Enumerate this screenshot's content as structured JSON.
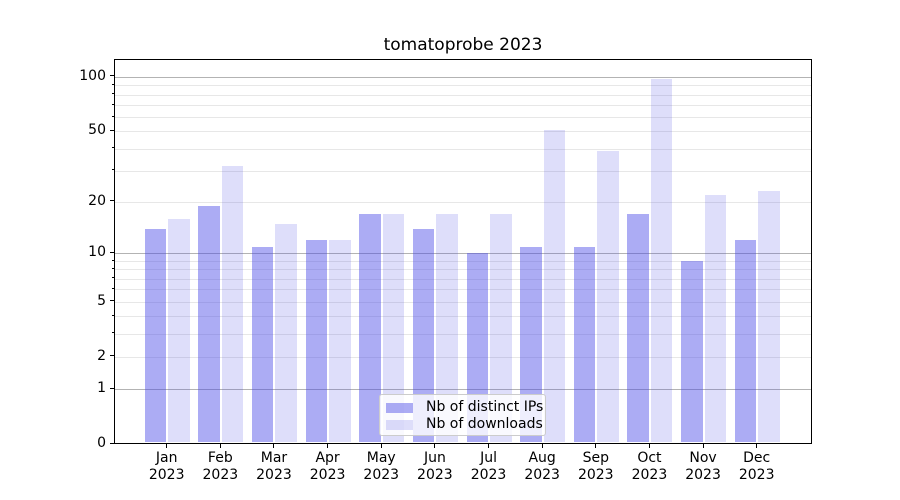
{
  "title": "tomatoprobe 2023",
  "colors": {
    "distinct_ips": "rgba(70,70,230,0.45)",
    "downloads": "rgba(70,70,230,0.18)",
    "grid_minor": "#e7e7e7",
    "grid_major": "#b3b3b3"
  },
  "legend": {
    "items": [
      {
        "label": "Nb of distinct IPs",
        "color": "rgba(70,70,230,0.45)"
      },
      {
        "label": "Nb of downloads",
        "color": "rgba(70,70,230,0.18)"
      }
    ]
  },
  "chart_data": {
    "type": "bar",
    "title": "tomatoprobe 2023",
    "categories": [
      "Jan 2023",
      "Feb 2023",
      "Mar 2023",
      "Apr 2023",
      "May 2023",
      "Jun 2023",
      "Jul 2023",
      "Aug 2023",
      "Sep 2023",
      "Oct 2023",
      "Nov 2023",
      "Dec 2023"
    ],
    "series": [
      {
        "name": "Nb of distinct IPs",
        "color": "rgba(70,70,230,0.45)",
        "values": [
          14,
          19,
          11,
          12,
          17,
          14,
          10,
          11,
          11,
          17,
          9,
          12
        ]
      },
      {
        "name": "Nb of downloads",
        "color": "rgba(70,70,230,0.18)",
        "values": [
          16,
          32,
          15,
          12,
          17,
          17,
          17,
          51,
          39,
          97,
          22,
          23
        ]
      }
    ],
    "yscale": "log1p",
    "ylim": [
      0,
      124
    ],
    "yticks": [
      100,
      50,
      20,
      10,
      5,
      2,
      1,
      0
    ],
    "major_grid": [
      1,
      10,
      100
    ],
    "minor_grid": [
      2,
      3,
      4,
      5,
      6,
      7,
      8,
      9,
      20,
      30,
      40,
      50,
      60,
      70,
      80,
      90
    ],
    "grid": true,
    "legend_position": "lower center"
  }
}
